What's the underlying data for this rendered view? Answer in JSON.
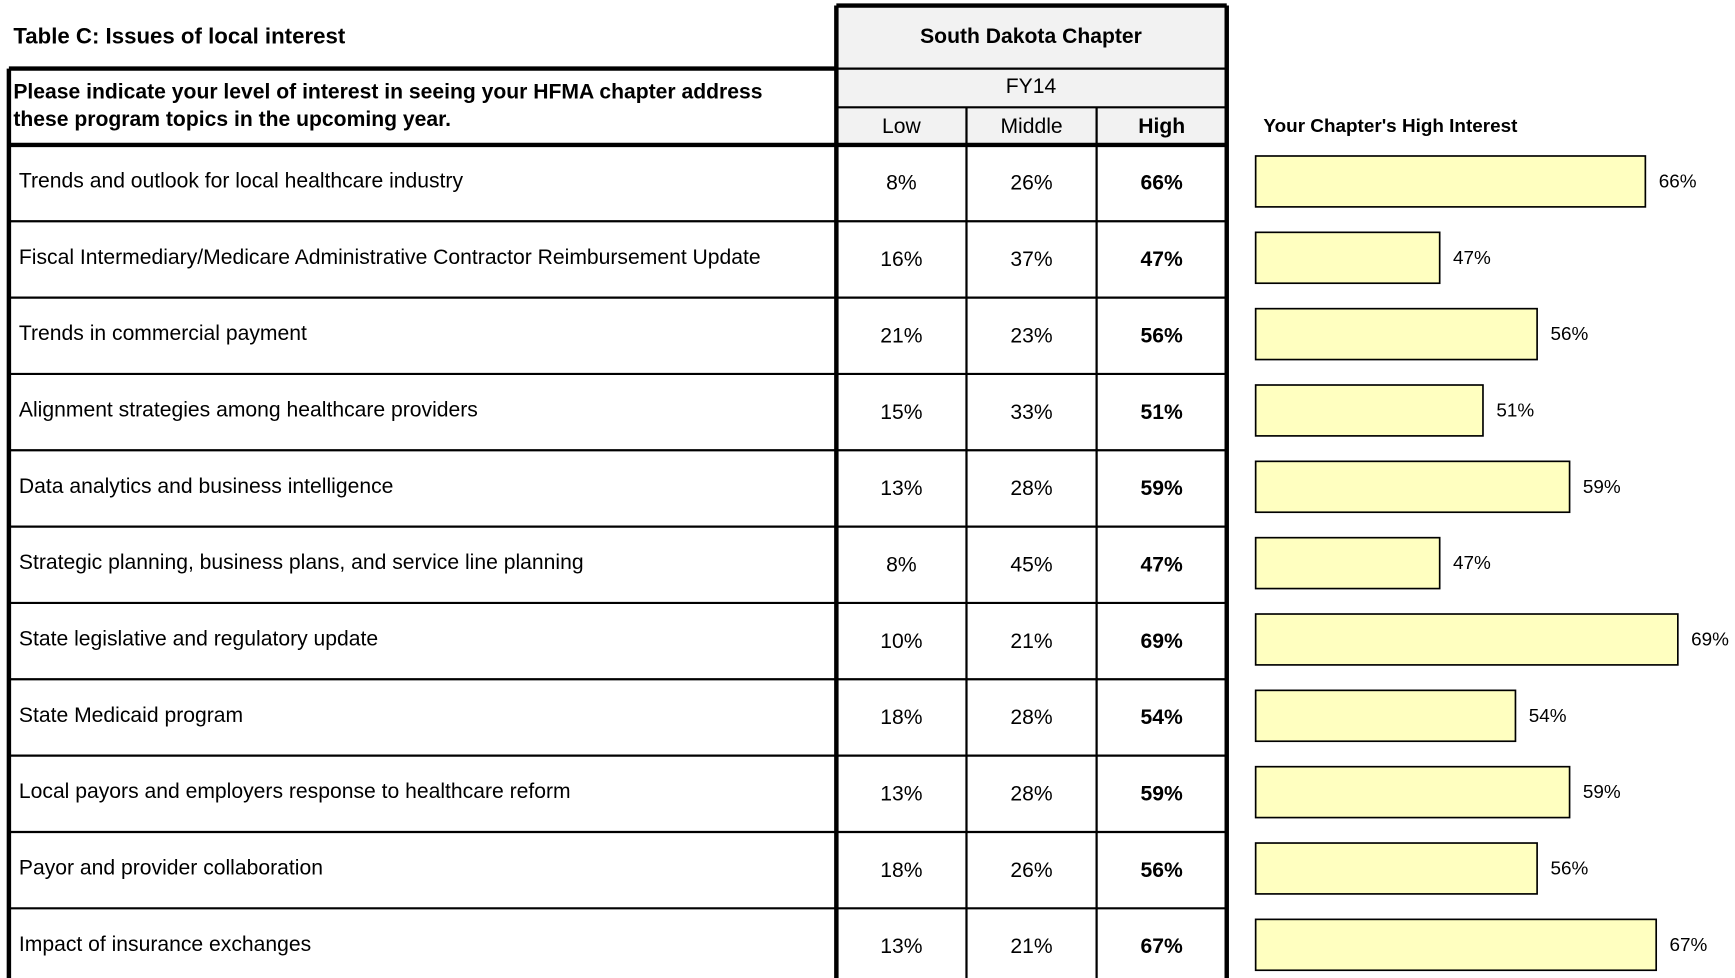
{
  "table": {
    "title": "Table C:  Issues of local interest",
    "question": [
      "Please indicate your level of interest in seeing your HFMA chapter address",
      "these program topics in the upcoming year."
    ],
    "group": "South Dakota Chapter",
    "period": "FY14",
    "columns": [
      "Low",
      "Middle",
      "High"
    ],
    "rows": [
      [
        "Trends and outlook for local healthcare industry",
        "8%",
        "26%",
        "66%"
      ],
      [
        "Fiscal Intermediary/Medicare Administrative Contractor Reimbursement Update",
        "16%",
        "37%",
        "47%"
      ],
      [
        "Trends in commercial payment",
        "21%",
        "23%",
        "56%"
      ],
      [
        "Alignment strategies among healthcare providers",
        "15%",
        "33%",
        "51%"
      ],
      [
        "Data analytics and business intelligence",
        "13%",
        "28%",
        "59%"
      ],
      [
        "Strategic planning, business plans, and service line planning",
        "8%",
        "45%",
        "47%"
      ],
      [
        "State legislative and regulatory update",
        "10%",
        "21%",
        "69%"
      ],
      [
        "State Medicaid program",
        "18%",
        "28%",
        "54%"
      ],
      [
        "Local payors and employers response to healthcare reform",
        "13%",
        "28%",
        "59%"
      ],
      [
        "Payor and provider collaboration",
        "18%",
        "26%",
        "56%"
      ],
      [
        "Impact of insurance exchanges",
        "13%",
        "21%",
        "67%"
      ]
    ]
  },
  "chart_data": {
    "type": "bar",
    "orientation": "horizontal",
    "title": "Your Chapter's High Interest",
    "values": [
      66,
      47,
      56,
      51,
      59,
      47,
      69,
      54,
      59,
      56,
      67
    ],
    "value_labels": [
      "66%",
      "47%",
      "56%",
      "51%",
      "59%",
      "47%",
      "69%",
      "54%",
      "59%",
      "56%",
      "67%"
    ],
    "xlim": [
      30,
      75
    ],
    "color": "#ffffc0"
  }
}
